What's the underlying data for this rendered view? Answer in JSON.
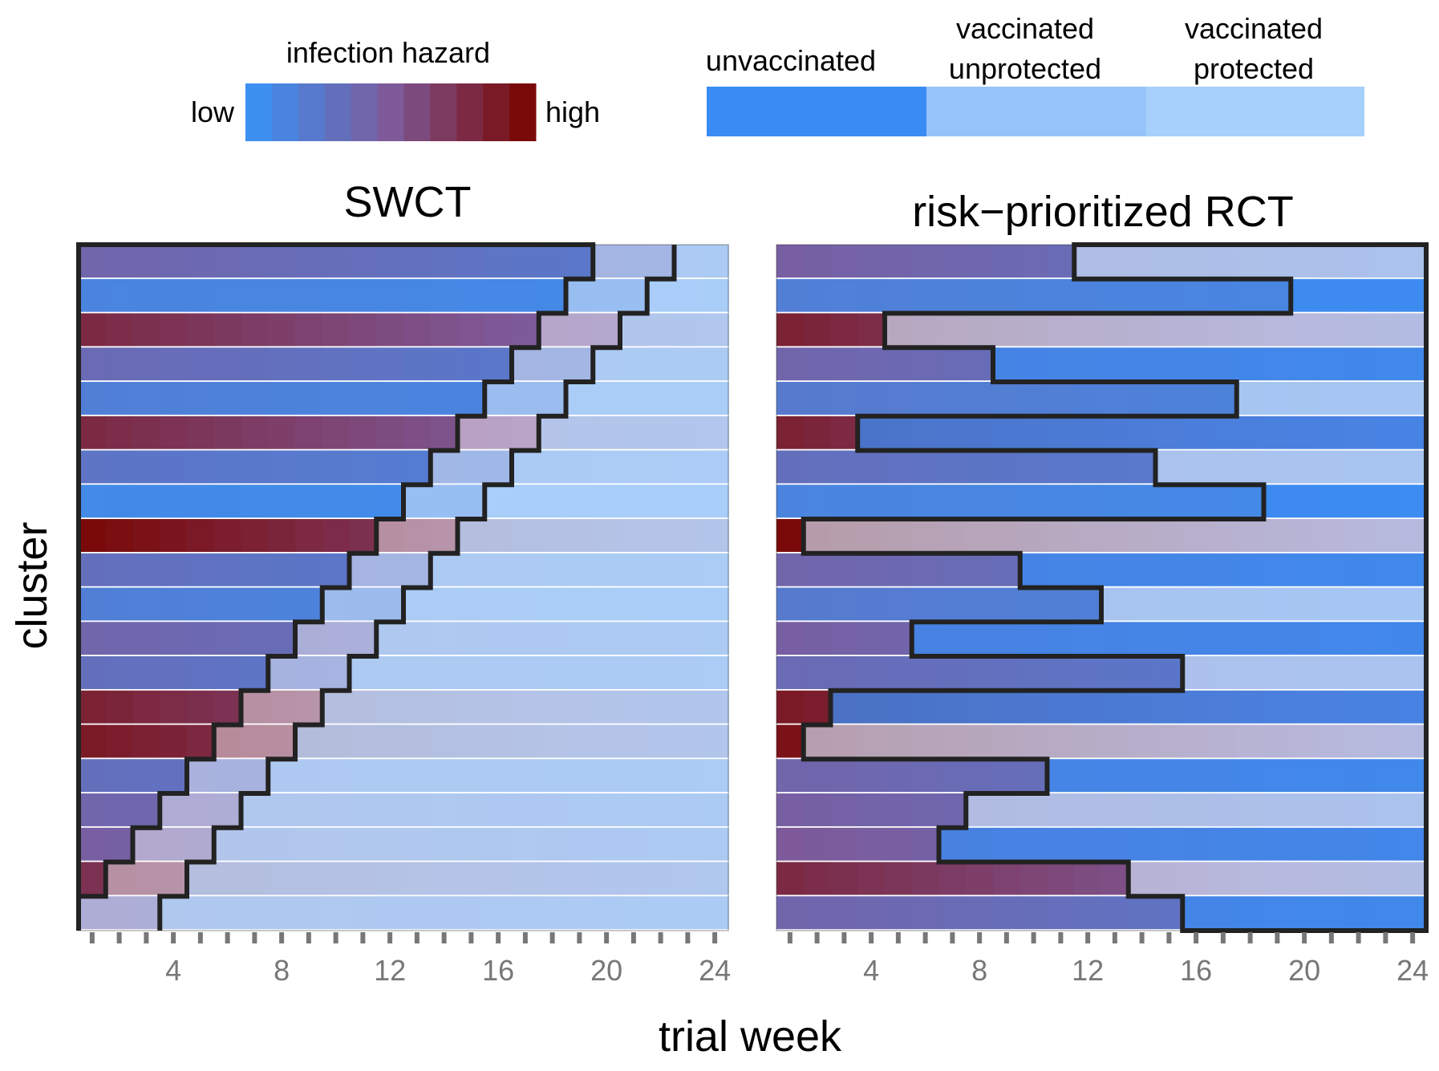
{
  "legend_hazard": {
    "title": "infection hazard",
    "low_label": "low",
    "high_label": "high",
    "low_color": "#3d8ff0",
    "high_color": "#7a0a0a"
  },
  "legend_status": [
    {
      "label_line1": "",
      "label_line2": "unvaccinated",
      "color": "#3a8cf4"
    },
    {
      "label_line1": "vaccinated",
      "label_line2": "unprotected",
      "color": "#97c4f8"
    },
    {
      "label_line1": "vaccinated",
      "label_line2": "protected",
      "color": "#a7d0fb"
    }
  ],
  "xlabel": "trial week",
  "ylabel": "cluster",
  "chart_data": [
    {
      "type": "heatmap",
      "title": "SWCT",
      "xlim": [
        1,
        24
      ],
      "xticks": [
        4,
        8,
        12,
        16,
        20,
        24
      ],
      "clusters": 20,
      "hazard": [
        0.4,
        0.1,
        0.8,
        0.35,
        0.15,
        0.8,
        0.25,
        0.05,
        1.0,
        0.3,
        0.15,
        0.4,
        0.3,
        0.85,
        0.9,
        0.3,
        0.4,
        0.45,
        0.75,
        0.35
      ],
      "vaccination_week": [
        20,
        19,
        18,
        17,
        16,
        15,
        14,
        13,
        12,
        11,
        10,
        9,
        8,
        7,
        6,
        5,
        4,
        3,
        2,
        1
      ],
      "protection_week": [
        23,
        22,
        21,
        20,
        19,
        18,
        17,
        16,
        15,
        14,
        13,
        12,
        11,
        10,
        9,
        8,
        7,
        6,
        5,
        4
      ]
    },
    {
      "type": "heatmap",
      "title": "risk−prioritized RCT",
      "xlim": [
        1,
        24
      ],
      "xticks": [
        4,
        8,
        12,
        16,
        20,
        24
      ],
      "clusters": 20,
      "hazard": [
        0.45,
        0.15,
        0.85,
        0.4,
        0.2,
        0.85,
        0.3,
        0.1,
        1.0,
        0.4,
        0.2,
        0.45,
        0.35,
        0.9,
        0.95,
        0.4,
        0.45,
        0.5,
        0.8,
        0.4
      ],
      "vaccinated_arm": [
        true,
        false,
        true,
        false,
        true,
        false,
        true,
        false,
        true,
        false,
        true,
        false,
        true,
        false,
        true,
        false,
        true,
        false,
        true,
        false
      ],
      "protection_week": [
        12,
        20,
        5,
        9,
        18,
        4,
        15,
        19,
        2,
        10,
        13,
        6,
        16,
        3,
        2,
        11,
        8,
        7,
        14,
        16
      ]
    }
  ]
}
